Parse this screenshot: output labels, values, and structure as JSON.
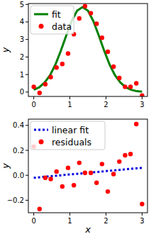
{
  "chart_data": [
    {
      "type": "scatter",
      "y_label": "y",
      "xlim": [
        -0.15,
        3.15
      ],
      "ylim": [
        -0.25,
        5.05
      ],
      "xticks": [
        0,
        1,
        2,
        3
      ],
      "yticks": [
        0,
        1,
        2,
        3,
        4,
        5
      ],
      "legend": "upper-left",
      "series": [
        {
          "name": "fit",
          "type": "line",
          "color": "#008000",
          "line_style": "solid",
          "x": [
            0,
            0.15,
            0.3,
            0.45,
            0.6,
            0.75,
            0.9,
            1.05,
            1.2,
            1.35,
            1.5,
            1.65,
            1.8,
            1.95,
            2.1,
            2.25,
            2.4,
            2.55,
            2.7,
            2.85,
            3.0
          ],
          "values": [
            0.13,
            0.27,
            0.54,
            0.96,
            1.57,
            2.36,
            3.23,
            4.05,
            4.64,
            4.85,
            4.64,
            4.05,
            3.23,
            2.36,
            1.57,
            0.96,
            0.54,
            0.27,
            0.13,
            0.05,
            0.02
          ]
        },
        {
          "name": "data",
          "type": "scatter",
          "color": "#ff0000",
          "marker": "circle",
          "x": [
            0,
            0.16,
            0.32,
            0.47,
            0.63,
            0.79,
            0.95,
            1.11,
            1.26,
            1.42,
            1.58,
            1.74,
            1.89,
            2.05,
            2.21,
            2.37,
            2.53,
            2.68,
            2.84,
            3.0
          ],
          "values": [
            0.3,
            -0.05,
            0.45,
            0.85,
            1.4,
            1.6,
            2.2,
            3.3,
            4.2,
            4.9,
            4.5,
            3.9,
            3.1,
            2.3,
            1.45,
            0.8,
            0.3,
            0.3,
            0.5,
            -0.2
          ]
        }
      ]
    },
    {
      "type": "scatter",
      "x_label": "x",
      "y_label": "y",
      "xlim": [
        -0.15,
        3.15
      ],
      "ylim": [
        -0.3,
        0.45
      ],
      "xticks": [
        0,
        1,
        2,
        3
      ],
      "yticks": [
        {
          "value": -0.2,
          "label": "−0.2"
        },
        {
          "value": 0,
          "label": "0.0"
        },
        {
          "value": 0.2,
          "label": "0.2"
        },
        {
          "value": 0.4,
          "label": "0.4"
        }
      ],
      "legend": "upper-left",
      "series": [
        {
          "name": "linear fit",
          "type": "line",
          "color": "#0000dd",
          "line_style": "dotted",
          "x": [
            0,
            3
          ],
          "values": [
            -0.02,
            0.06
          ]
        },
        {
          "name": "residuals",
          "type": "scatter",
          "color": "#ff0000",
          "marker": "circle",
          "x": [
            0,
            0.16,
            0.32,
            0.47,
            0.63,
            0.79,
            0.95,
            1.11,
            1.26,
            1.42,
            1.58,
            1.74,
            1.89,
            2.05,
            2.21,
            2.37,
            2.53,
            2.68,
            2.84,
            3.0
          ],
          "values": [
            0.23,
            -0.27,
            -0.02,
            -0.03,
            0.03,
            -0.09,
            0.06,
            -0.08,
            0.1,
            0.02,
            0.02,
            -0.06,
            0.09,
            -0.13,
            0.01,
            0.11,
            0.16,
            0.17,
            0.41,
            -0.23
          ]
        }
      ]
    }
  ]
}
